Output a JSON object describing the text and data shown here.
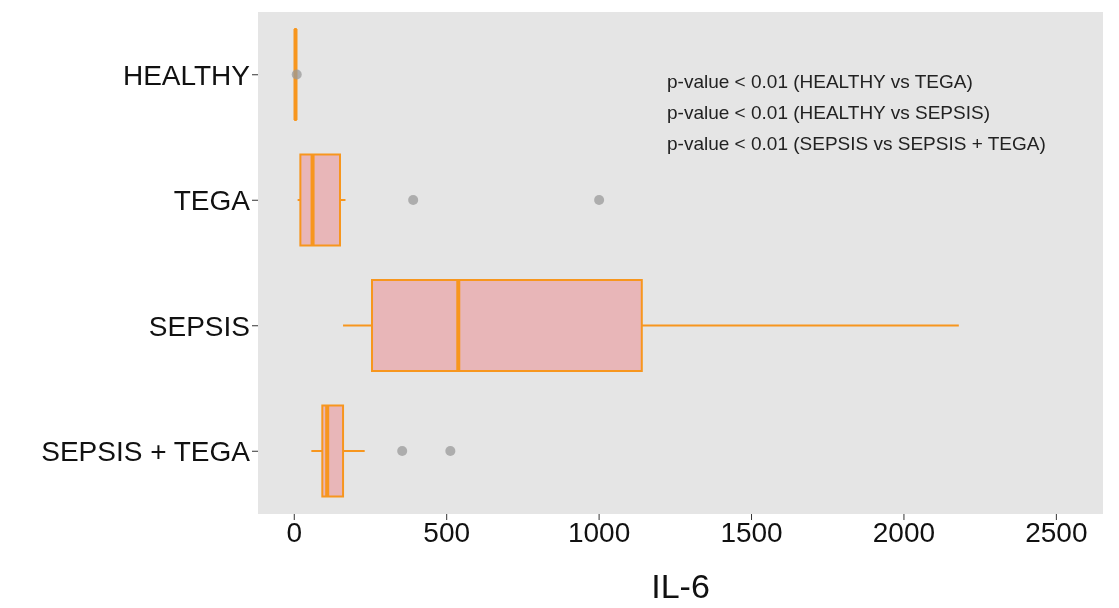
{
  "chart_data": {
    "type": "box",
    "orientation": "horizontal",
    "xlabel": "IL-6",
    "categories": [
      "HEALTHY",
      "TEGA",
      "SEPSIS",
      "SEPSIS + TEGA"
    ],
    "color": "#f7961e",
    "colors": [
      "#e8b6b8",
      "#e8b6b8",
      "#e8b6b8",
      "#e8b6b8"
    ],
    "boxes": [
      {
        "low": 1,
        "q1": 3,
        "median": 4,
        "q3": 5,
        "high": 6,
        "outliers": [
          8
        ]
      },
      {
        "low": 11,
        "q1": 20,
        "median": 60,
        "q3": 150,
        "high": 168,
        "outliers": [
          390,
          1000
        ]
      },
      {
        "low": 160,
        "q1": 255,
        "median": 538,
        "q3": 1140,
        "high": 2180
      },
      {
        "low": 56,
        "q1": 92,
        "median": 108,
        "q3": 160,
        "high": 231,
        "outliers": [
          354,
          512
        ]
      }
    ],
    "xlim": [
      -119,
      2653
    ],
    "xticks": [
      0,
      500,
      1000,
      1500,
      2000,
      2500
    ],
    "grid": false,
    "annotations": [
      "p-value < 0.01 (HEALTHY vs TEGA)",
      "p-value < 0.01 (HEALTHY vs SEPSIS)",
      "p-value < 0.01 (SEPSIS vs SEPSIS + TEGA)"
    ]
  }
}
